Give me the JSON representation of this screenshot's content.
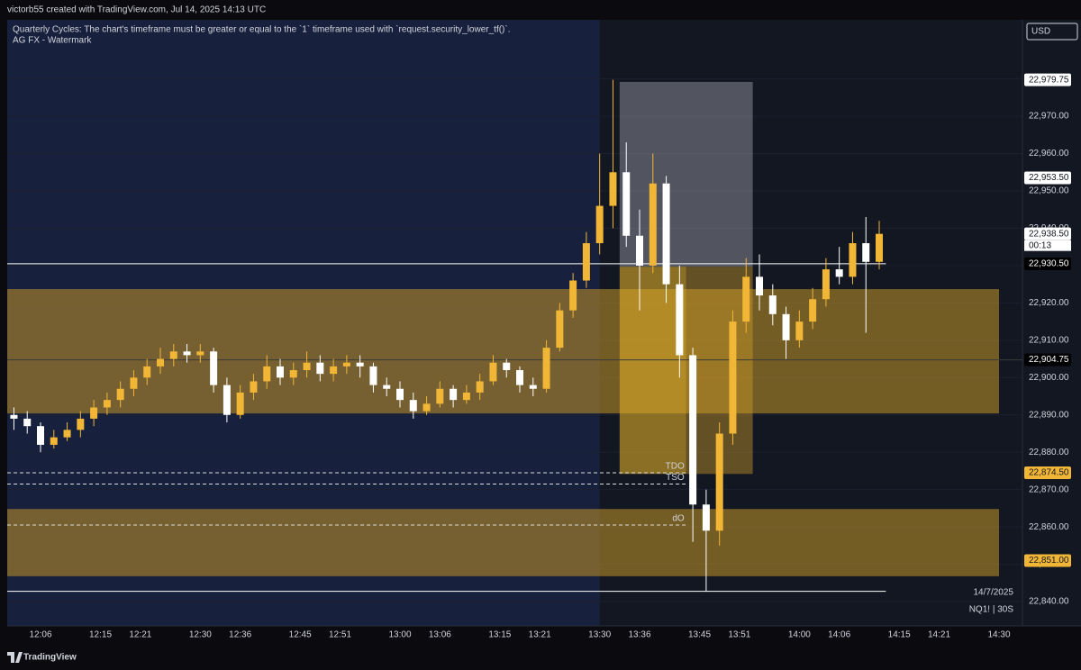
{
  "header": {
    "credit": "victorb55 created with TradingView.com, Jul 14, 2025 14:13 UTC",
    "notes": [
      "Quarterly Cycles: The chart's timeframe must be greater or equal to the `1` timeframe used with `request.security_lower_tf()`.",
      "AG FX - Watermark"
    ],
    "currency": "USD",
    "date": "14/7/2025",
    "symbol": "NQ1! | 30S",
    "brand": "TradingView",
    "countdown": "00:13"
  },
  "chart_data": {
    "type": "candlestick",
    "up_color": "#f2b636",
    "down_color": "#ffffff",
    "x": [
      "12:02",
      "12:04",
      "12:06",
      "12:08",
      "12:10",
      "12:12",
      "12:14",
      "12:16",
      "12:18",
      "12:20",
      "12:22",
      "12:24",
      "12:26",
      "12:28",
      "12:30",
      "12:32",
      "12:34",
      "12:36",
      "12:38",
      "12:40",
      "12:42",
      "12:44",
      "12:46",
      "12:48",
      "12:50",
      "12:52",
      "12:54",
      "12:56",
      "12:58",
      "13:00",
      "13:02",
      "13:04",
      "13:06",
      "13:08",
      "13:10",
      "13:12",
      "13:14",
      "13:16",
      "13:18",
      "13:20",
      "13:22",
      "13:24",
      "13:26",
      "13:28",
      "13:30",
      "13:32",
      "13:34",
      "13:36",
      "13:38",
      "13:40",
      "13:42",
      "13:44",
      "13:46",
      "13:48",
      "13:50",
      "13:52",
      "13:54",
      "13:56",
      "13:58",
      "14:00",
      "14:02",
      "14:04",
      "14:06",
      "14:08",
      "14:10",
      "14:12"
    ],
    "open": [
      22890,
      22889,
      22887,
      22882,
      22884,
      22886,
      22889,
      22892,
      22894,
      22897,
      22900,
      22903,
      22905,
      22907,
      22906,
      22907,
      22898,
      22890,
      22896,
      22899,
      22903,
      22900,
      22902,
      22904,
      22901,
      22903,
      22904,
      22903,
      22898,
      22897,
      22894,
      22891,
      22893,
      22897,
      22894,
      22896,
      22899,
      22904,
      22902,
      22898,
      22897,
      22908,
      22918,
      22926,
      22936,
      22946,
      22955,
      22938,
      22930,
      22952,
      22925,
      22906,
      22866,
      22859,
      22885,
      22915,
      22927,
      22922,
      22917,
      22910,
      22915,
      22921,
      22929,
      22927,
      22936,
      22931
    ],
    "high": [
      22892,
      22891,
      22888,
      22886,
      22888,
      22891,
      22894,
      22896,
      22899,
      22902,
      22905,
      22908,
      22909,
      22909,
      22909,
      22908,
      22900,
      22898,
      22901,
      22906,
      22905,
      22904,
      22907,
      22906,
      22905,
      22906,
      22906,
      22904,
      22900,
      22899,
      22896,
      22895,
      22899,
      22898,
      22898,
      22901,
      22906,
      22905,
      22903,
      22900,
      22910,
      22920,
      22928,
      22939,
      22960,
      22979.75,
      22963,
      22945,
      22960,
      22954,
      22930,
      22908,
      22870,
      22888,
      22918,
      22932,
      22933,
      22925,
      22919,
      22918,
      22924,
      22932,
      22935,
      22939,
      22943,
      22942
    ],
    "low": [
      22886,
      22885,
      22880,
      22881,
      22883,
      22884,
      22887,
      22890,
      22892,
      22895,
      22898,
      22901,
      22903,
      22904,
      22904,
      22896,
      22888,
      22889,
      22894,
      22897,
      22898,
      22898,
      22900,
      22899,
      22899,
      22901,
      22900,
      22896,
      22895,
      22892,
      22889,
      22890,
      22892,
      22892,
      22893,
      22894,
      22898,
      22900,
      22896,
      22895,
      22896,
      22907,
      22916,
      22924,
      22933,
      22940,
      22935,
      22918,
      22928,
      22920,
      22900,
      22856,
      22842.75,
      22855,
      22882,
      22912,
      22918,
      22914,
      22905,
      22908,
      22913,
      22919,
      22925,
      22925,
      22912,
      22929
    ],
    "close": [
      22889,
      22887,
      22882,
      22884,
      22886,
      22889,
      22892,
      22894,
      22897,
      22900,
      22903,
      22905,
      22907,
      22906,
      22907,
      22898,
      22890,
      22896,
      22899,
      22903,
      22900,
      22902,
      22904,
      22901,
      22903,
      22904,
      22903,
      22898,
      22897,
      22894,
      22891,
      22893,
      22897,
      22894,
      22896,
      22899,
      22904,
      22902,
      22898,
      22897,
      22908,
      22918,
      22926,
      22936,
      22946,
      22955,
      22938,
      22930,
      22952,
      22925,
      22906,
      22866,
      22859,
      22885,
      22915,
      22927,
      22922,
      22917,
      22910,
      22915,
      22921,
      22929,
      22927,
      22936,
      22931,
      22938.5
    ],
    "ylim": [
      22833.5,
      22993.9
    ],
    "yticks": [
      {
        "value": 22840,
        "label": "22,840.00"
      },
      {
        "value": 22850,
        "label": "22,850.00"
      },
      {
        "value": 22860,
        "label": "22,860.00"
      },
      {
        "value": 22870,
        "label": "22,870.00"
      },
      {
        "value": 22880,
        "label": "22,880.00"
      },
      {
        "value": 22890,
        "label": "22,890.00"
      },
      {
        "value": 22900,
        "label": "22,900.00"
      },
      {
        "value": 22910,
        "label": "22,910.00"
      },
      {
        "value": 22920,
        "label": "22,920.00"
      },
      {
        "value": 22930,
        "label": "22,930.00"
      },
      {
        "value": 22940,
        "label": "22,940.00"
      },
      {
        "value": 22950,
        "label": "22,950.00"
      },
      {
        "value": 22960,
        "label": "22,960.00"
      },
      {
        "value": 22970,
        "label": "22,970.00"
      },
      {
        "value": 22980,
        "label": "22,980.00"
      }
    ],
    "xticks": [
      "12:06",
      "12:15",
      "12:21",
      "12:30",
      "12:36",
      "12:45",
      "12:51",
      "13:00",
      "13:06",
      "13:15",
      "13:21",
      "13:30",
      "13:36",
      "13:45",
      "13:51",
      "14:00",
      "14:06",
      "14:15",
      "14:21",
      "14:30"
    ],
    "session_start": "13:30",
    "zones": [
      {
        "range": [
          22890.4,
          22923.7
        ],
        "from": "12:01",
        "to": "14:30",
        "color": "rgba(196,150,40,0.55)"
      },
      {
        "range": [
          22846.8,
          22864.8
        ],
        "from": "12:01",
        "to": "14:30",
        "color": "rgba(196,150,40,0.55)"
      },
      {
        "range": [
          22929.7,
          22979.2
        ],
        "from": "13:33",
        "to": "13:53",
        "color": "rgba(200,200,210,0.35)"
      },
      {
        "range": [
          22874.2,
          22929.7
        ],
        "from": "13:33",
        "to": "13:43",
        "color": "rgba(220,170,40,0.6)"
      },
      {
        "range": [
          22874.2,
          22929.7
        ],
        "from": "13:43",
        "to": "13:53",
        "color": "rgba(210,160,40,0.42)"
      }
    ],
    "levels": [
      {
        "value": 22930.5,
        "from": "12:01",
        "to": "14:13",
        "color": "#ffffff",
        "dash": false
      },
      {
        "value": 22904.75,
        "from": "12:01",
        "to": "14:49",
        "color": "#3a3a3a",
        "dash": false
      },
      {
        "value": 22874.5,
        "from": "12:01",
        "to": "13:43",
        "color": "#dddddd",
        "dash": true,
        "label": "TDO"
      },
      {
        "value": 22871.5,
        "from": "12:01",
        "to": "13:43",
        "color": "#dddddd",
        "dash": true,
        "label": "TSO"
      },
      {
        "value": 22860.5,
        "from": "12:01",
        "to": "13:43",
        "color": "#dddddd",
        "dash": true,
        "label": "dO"
      },
      {
        "value": 22842.75,
        "from": "12:01",
        "to": "14:13",
        "color": "#ffffff",
        "dash": false
      }
    ],
    "price_tags": [
      {
        "value": 22979.75,
        "label": "22,979.75",
        "bg": "#ffffff",
        "fg": "#131722"
      },
      {
        "value": 22953.5,
        "label": "22,953.50",
        "bg": "#ffffff",
        "fg": "#131722"
      },
      {
        "value": 22938.5,
        "label": "22,938.50",
        "bg": "#ffffff",
        "fg": "#131722"
      },
      {
        "value": 22930.5,
        "label": "22,930.50",
        "bg": "#000000",
        "fg": "#ffffff"
      },
      {
        "value": 22904.75,
        "label": "22,904.75",
        "bg": "#000000",
        "fg": "#ffffff"
      },
      {
        "value": 22874.5,
        "label": "22,874.50",
        "bg": "#f2b636",
        "fg": "#131722"
      },
      {
        "value": 22851,
        "label": "22,851.00",
        "bg": "#f2b636",
        "fg": "#131722"
      }
    ]
  }
}
